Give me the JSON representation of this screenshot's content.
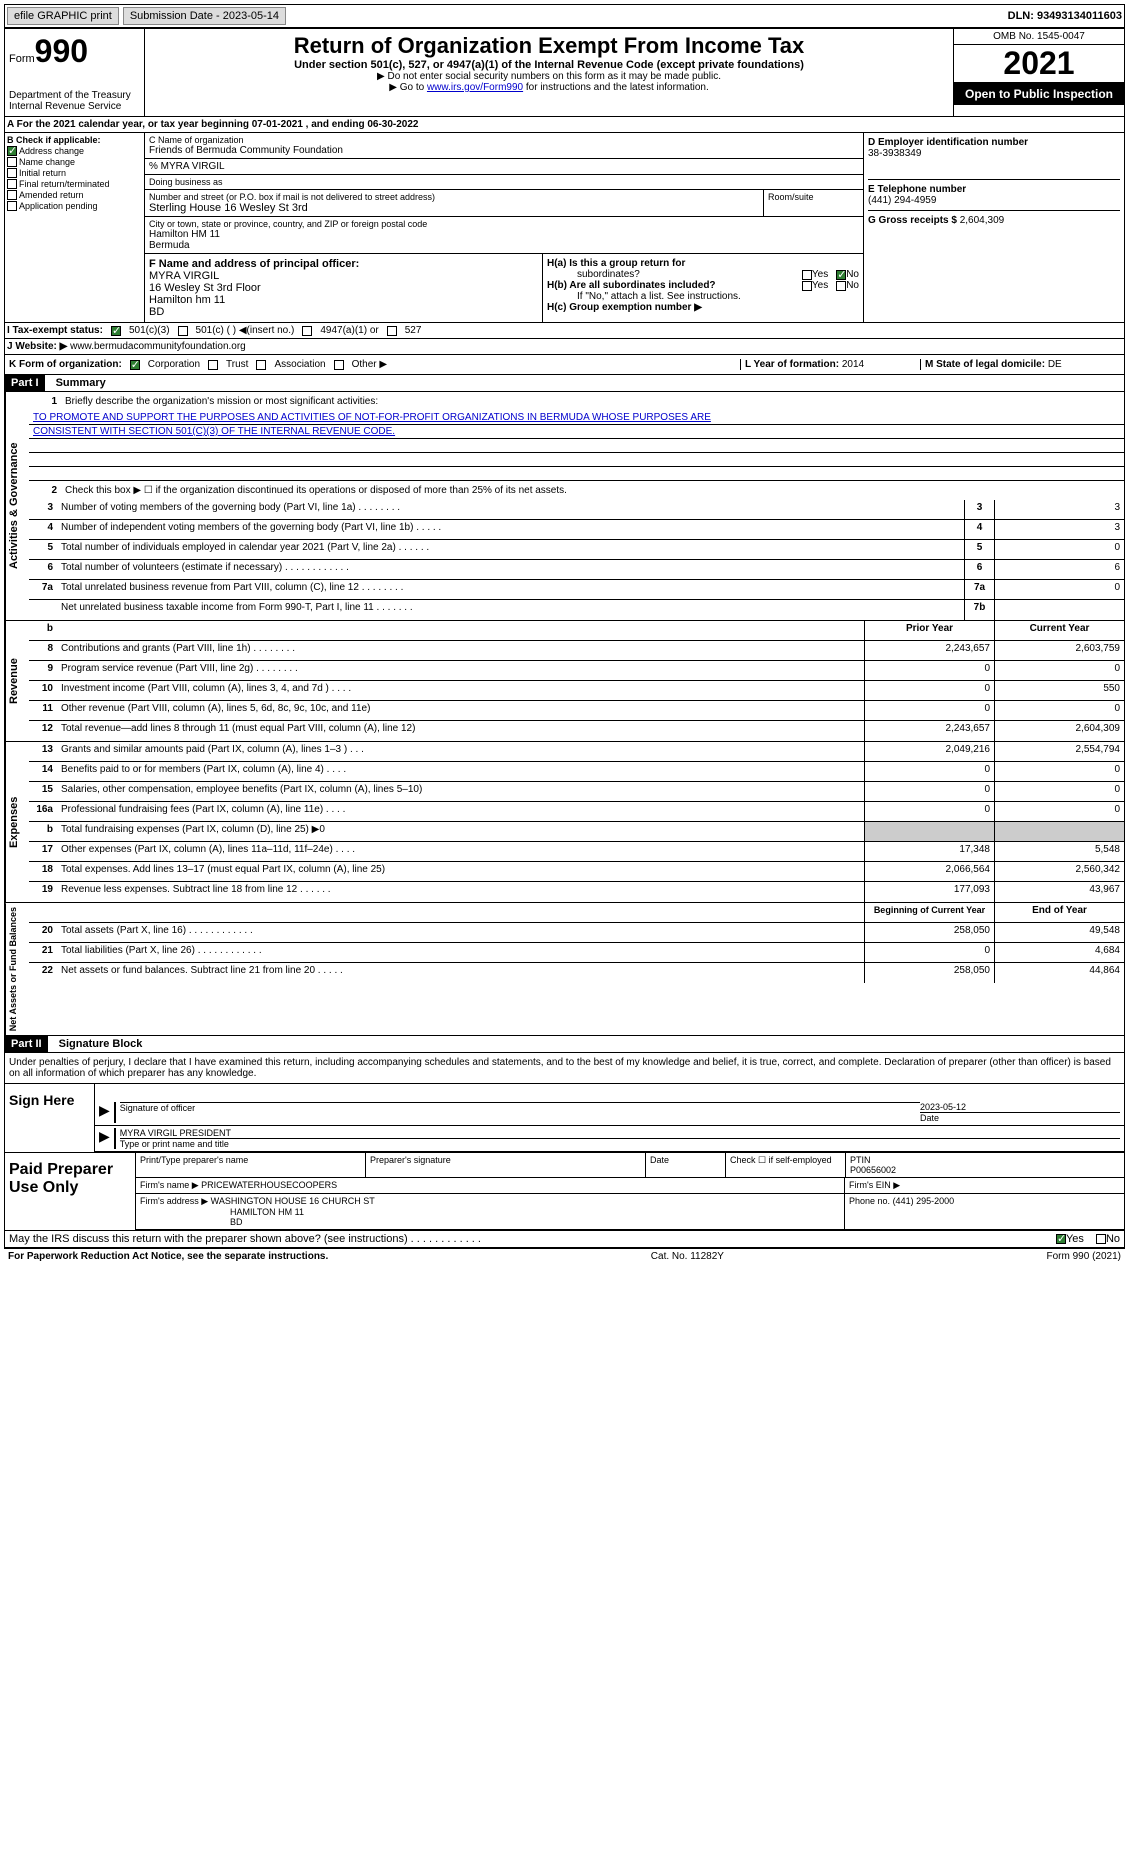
{
  "topbar": {
    "efile": "efile GRAPHIC print",
    "submission": "Submission Date - 2023-05-14",
    "dln": "DLN: 93493134011603"
  },
  "header": {
    "form_label": "Form",
    "form_num": "990",
    "dept": "Department of the Treasury",
    "irs": "Internal Revenue Service",
    "title": "Return of Organization Exempt From Income Tax",
    "subtitle": "Under section 501(c), 527, or 4947(a)(1) of the Internal Revenue Code (except private foundations)",
    "warn": "▶ Do not enter social security numbers on this form as it may be made public.",
    "goto_pre": "▶ Go to ",
    "goto_link": "www.irs.gov/Form990",
    "goto_post": " for instructions and the latest information.",
    "omb": "OMB No. 1545-0047",
    "year": "2021",
    "public": "Open to Public Inspection"
  },
  "line_a": "For the 2021 calendar year, or tax year beginning 07-01-2021    , and ending 06-30-2022",
  "section_b": {
    "label": "B Check if applicable:",
    "items": [
      "Address change",
      "Name change",
      "Initial return",
      "Final return/terminated",
      "Amended return",
      "Application pending"
    ]
  },
  "section_c": {
    "name_label": "C Name of organization",
    "name": "Friends of Bermuda Community Foundation",
    "care_of": "% MYRA VIRGIL",
    "dba_label": "Doing business as",
    "dba": "",
    "street_label": "Number and street (or P.O. box if mail is not delivered to street address)",
    "street": "Sterling House 16 Wesley St 3rd",
    "room_label": "Room/suite",
    "city_label": "City or town, state or province, country, and ZIP or foreign postal code",
    "city": "Hamilton  HM 11",
    "country": "Bermuda"
  },
  "section_d": {
    "label": "D Employer identification number",
    "ein": "38-3938349"
  },
  "section_e": {
    "label": "E Telephone number",
    "phone": "(441) 294-4959"
  },
  "section_g": {
    "label": "G Gross receipts $",
    "amount": "2,604,309"
  },
  "section_f": {
    "label": "F  Name and address of principal officer:",
    "name": "MYRA VIRGIL",
    "street": "16 Wesley St 3rd Floor",
    "city": "Hamilton      hm 11",
    "country": "BD"
  },
  "section_h": {
    "a_label": "H(a)  Is this a group return for",
    "a_sub": "subordinates?",
    "b_label": "H(b)  Are all subordinates included?",
    "b_note": "If \"No,\" attach a list. See instructions.",
    "c_label": "H(c)  Group exemption number ▶",
    "yes": "Yes",
    "no": "No"
  },
  "section_i": {
    "label": "I    Tax-exempt status:",
    "opt1": "501(c)(3)",
    "opt2": "501(c) (  ) ◀(insert no.)",
    "opt3": "4947(a)(1) or",
    "opt4": "527"
  },
  "section_j": {
    "label": "J    Website: ▶",
    "url": "www.bermudacommunityfoundation.org"
  },
  "section_k": {
    "label": "K Form of organization:",
    "opts": [
      "Corporation",
      "Trust",
      "Association",
      "Other ▶"
    ]
  },
  "section_l": {
    "label": "L Year of formation:",
    "val": "2014"
  },
  "section_m": {
    "label": "M State of legal domicile:",
    "val": "DE"
  },
  "part1": {
    "header": "Part I",
    "title": "Summary"
  },
  "summary": {
    "gov_label": "Activities & Governance",
    "rev_label": "Revenue",
    "exp_label": "Expenses",
    "net_label": "Net Assets or Fund Balances",
    "line1_label": "Briefly describe the organization's mission or most significant activities:",
    "mission1": "TO PROMOTE AND SUPPORT THE PURPOSES AND ACTIVITIES OF NOT-FOR-PROFIT ORGANIZATIONS IN BERMUDA WHOSE PURPOSES ARE",
    "mission2": "CONSISTENT WITH SECTION 501(C)(3) OF THE INTERNAL REVENUE CODE.",
    "line2": "Check this box ▶ ☐ if the organization discontinued its operations or disposed of more than 25% of its net assets.",
    "lines": [
      {
        "n": "3",
        "t": "Number of voting members of the governing body (Part VI, line 1a)   .    .    .    .    .    .    .    .",
        "box": "3",
        "v": "3"
      },
      {
        "n": "4",
        "t": "Number of independent voting members of the governing body (Part VI, line 1b)    .    .    .    .    .",
        "box": "4",
        "v": "3"
      },
      {
        "n": "5",
        "t": "Total number of individuals employed in calendar year 2021 (Part V, line 2a)    .    .    .    .    .    .",
        "box": "5",
        "v": "0"
      },
      {
        "n": "6",
        "t": "Total number of volunteers (estimate if necessary)    .    .    .    .    .    .    .    .    .    .    .    .",
        "box": "6",
        "v": "6"
      },
      {
        "n": "7a",
        "t": "Total unrelated business revenue from Part VIII, column (C), line 12   .    .    .    .    .    .    .    .",
        "box": "7a",
        "v": "0"
      },
      {
        "n": "",
        "t": "Net unrelated business taxable income from Form 990-T, Part I, line 11   .    .    .    .    .    .    .",
        "box": "7b",
        "v": ""
      }
    ],
    "prior_header": "Prior Year",
    "current_header": "Current Year",
    "rev_lines": [
      {
        "n": "8",
        "t": "Contributions and grants (Part VIII, line 1h)    .    .    .    .    .    .    .    .",
        "p": "2,243,657",
        "c": "2,603,759"
      },
      {
        "n": "9",
        "t": "Program service revenue (Part VIII, line 2g)    .    .    .    .    .    .    .    .",
        "p": "0",
        "c": "0"
      },
      {
        "n": "10",
        "t": "Investment income (Part VIII, column (A), lines 3, 4, and 7d )    .    .    .    .",
        "p": "0",
        "c": "550"
      },
      {
        "n": "11",
        "t": "Other revenue (Part VIII, column (A), lines 5, 6d, 8c, 9c, 10c, and 11e)",
        "p": "0",
        "c": "0"
      },
      {
        "n": "12",
        "t": "Total revenue—add lines 8 through 11 (must equal Part VIII, column (A), line 12)",
        "p": "2,243,657",
        "c": "2,604,309"
      }
    ],
    "exp_lines": [
      {
        "n": "13",
        "t": "Grants and similar amounts paid (Part IX, column (A), lines 1–3 )    .    .    .",
        "p": "2,049,216",
        "c": "2,554,794"
      },
      {
        "n": "14",
        "t": "Benefits paid to or for members (Part IX, column (A), line 4)    .    .    .    .",
        "p": "0",
        "c": "0"
      },
      {
        "n": "15",
        "t": "Salaries, other compensation, employee benefits (Part IX, column (A), lines 5–10)",
        "p": "0",
        "c": "0"
      },
      {
        "n": "16a",
        "t": "Professional fundraising fees (Part IX, column (A), line 11e)    .    .    .    .",
        "p": "0",
        "c": "0"
      },
      {
        "n": "b",
        "t": "Total fundraising expenses (Part IX, column (D), line 25) ▶0",
        "p": "",
        "c": "",
        "shaded": true
      },
      {
        "n": "17",
        "t": "Other expenses (Part IX, column (A), lines 11a–11d, 11f–24e)    .    .    .    .",
        "p": "17,348",
        "c": "5,548"
      },
      {
        "n": "18",
        "t": "Total expenses. Add lines 13–17 (must equal Part IX, column (A), line 25)",
        "p": "2,066,564",
        "c": "2,560,342"
      },
      {
        "n": "19",
        "t": "Revenue less expenses. Subtract line 18 from line 12    .    .    .    .    .    .",
        "p": "177,093",
        "c": "43,967"
      }
    ],
    "begin_header": "Beginning of Current Year",
    "end_header": "End of Year",
    "net_lines": [
      {
        "n": "20",
        "t": "Total assets (Part X, line 16)    .    .    .    .    .    .    .    .    .    .    .    .",
        "p": "258,050",
        "c": "49,548"
      },
      {
        "n": "21",
        "t": "Total liabilities (Part X, line 26)    .    .    .    .    .    .    .    .    .    .    .    .",
        "p": "0",
        "c": "4,684"
      },
      {
        "n": "22",
        "t": "Net assets or fund balances. Subtract line 21 from line 20   .    .    .    .    .",
        "p": "258,050",
        "c": "44,864"
      }
    ]
  },
  "part2": {
    "header": "Part II",
    "title": "Signature Block",
    "intro": "Under penalties of perjury, I declare that I have examined this return, including accompanying schedules and statements, and to the best of my knowledge and belief, it is true, correct, and complete. Declaration of preparer (other than officer) is based on all information of which preparer has any knowledge.",
    "sign_here": "Sign Here",
    "sig_officer": "Signature of officer",
    "date_label": "Date",
    "date": "2023-05-12",
    "officer_name": "MYRA VIRGIL PRESIDENT",
    "type_name": "Type or print name and title",
    "paid_prep": "Paid Preparer Use Only",
    "prep_name_label": "Print/Type preparer's name",
    "prep_sig_label": "Preparer's signature",
    "check_label": "Check ☐ if self-employed",
    "ptin_label": "PTIN",
    "ptin": "P00656002",
    "firm_name_label": "Firm's name    ▶",
    "firm_name": "PRICEWATERHOUSECOOPERS",
    "firm_ein_label": "Firm's EIN ▶",
    "firm_addr_label": "Firm's address ▶",
    "firm_addr": "WASHINGTON HOUSE 16 CHURCH ST",
    "firm_city": "HAMILTON   HM 11",
    "firm_country": "BD",
    "phone_label": "Phone no.",
    "phone": "(441) 295-2000",
    "discuss": "May the IRS discuss this return with the preparer shown above? (see instructions)    .    .    .    .    .    .    .    .    .    .    .    .",
    "yes": "Yes",
    "no": "No"
  },
  "footer": {
    "paperwork": "For Paperwork Reduction Act Notice, see the separate instructions.",
    "cat": "Cat. No. 11282Y",
    "form": "Form 990 (2021)"
  }
}
